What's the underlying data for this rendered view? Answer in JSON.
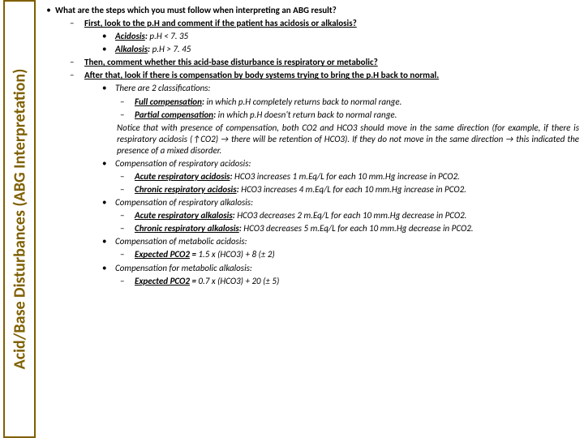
{
  "title": "Acid/Base Disturbances (ABG Interpretation)",
  "q": "What are the steps which you must follow when interpreting an ABG result?",
  "s1": "First, look to the p.H and comment if the patient has acidosis or alkalosis?",
  "s1a": "Acidosis: p.H < 7. 35",
  "s1b": "Alkalosis: p.H > 7. 45",
  "s2": "Then, comment whether this acid-base disturbance is respiratory or metabolic?",
  "s3": "After that, look if there is compensation by body systems trying to bring the p.H back to normal.",
  "c0": "There are 2 classifications:",
  "c0a": "Full compensation: in which p.H completely returns back to normal range.",
  "c0b": "Partial compensation: in which p.H doesn't return back to normal range.",
  "note": "Notice that with presence of compensation, both CO2 and HCO3 should move in the same direction (for example, if there is respiratory acidosis (↑CO2) → there will be retention of HCO3). If they do not move in the same direction → this indicated the presence of a mixed disorder.",
  "ra": "Compensation of respiratory acidosis:",
  "ra1": "Acute respiratory acidosis: HCO3 increases 1 m.Eq/L for each 10 mm.Hg increase in PCO2.",
  "ra2": "Chronic respiratory acidosis: HCO3 increases 4 m.Eq/L for each 10 mm.Hg increase in PCO2.",
  "rk": "Compensation of respiratory alkalosis:",
  "rk1": "Acute respiratory alkalosis: HCO3 decreases 2 m.Eq/L for each 10 mm.Hg decrease in PCO2.",
  "rk2": "Chronic respiratory alkalosis: HCO3 decreases 5 m.Eq/L for each 10 mm.Hg decrease in PCO2.",
  "ma": "Compensation of metabolic acidosis:",
  "ma1": "Expected PCO2 = 1.5 x (HCO3) + 8 (± 2)",
  "mk": "Compensation for metabolic alkalosis:",
  "mk1": "Expected PCO2 = 0.7 x (HCO3) + 20 (± 5)",
  "colors": {
    "accent": "#7f6000",
    "text": "#000000",
    "bg": "#ffffff"
  }
}
